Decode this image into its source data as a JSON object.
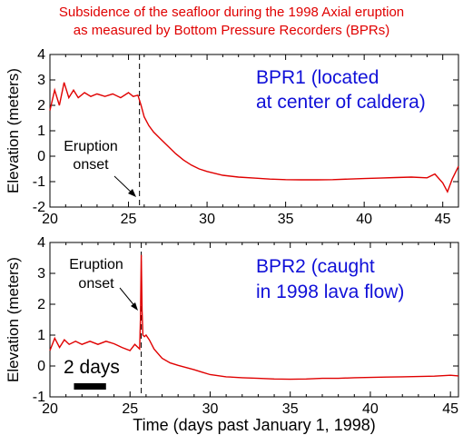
{
  "title_line1": "Subsidence of the seafloor during the 1998 Axial eruption",
  "title_line2": "as measured by Bottom Pressure Recorders (BPRs)",
  "colors": {
    "title": "#e00000",
    "series": "#e00000",
    "annotation": "#1010d8"
  },
  "chart_data": [
    {
      "type": "line",
      "name": "BPR1",
      "annotation_line1": "BPR1 (located",
      "annotation_line2": "at center of caldera)",
      "marker_label_line1": "Eruption",
      "marker_label_line2": "onset",
      "marker_x": 25.7,
      "ylabel": "Elevation (meters)",
      "xlim": [
        20,
        46
      ],
      "ylim": [
        -2,
        4
      ],
      "xticks": [
        "20",
        "25",
        "30",
        "35",
        "40",
        "45"
      ],
      "yticks": [
        "-2",
        "-1",
        "0",
        "1",
        "2",
        "3",
        "4"
      ],
      "x": [
        20,
        20.3,
        20.6,
        20.9,
        21.2,
        21.5,
        21.8,
        22.2,
        22.6,
        23,
        23.5,
        24,
        24.5,
        25,
        25.3,
        25.6,
        25.8,
        26,
        26.3,
        26.6,
        27,
        27.5,
        28,
        28.5,
        29,
        29.5,
        30,
        31,
        32,
        33,
        34,
        35,
        36,
        37,
        38,
        39,
        40,
        41,
        42,
        43,
        44,
        44.5,
        45,
        45.3,
        45.6,
        46
      ],
      "y": [
        1.8,
        2.6,
        2.0,
        2.9,
        2.3,
        2.6,
        2.3,
        2.5,
        2.35,
        2.45,
        2.35,
        2.45,
        2.3,
        2.5,
        2.35,
        2.4,
        2.0,
        1.55,
        1.2,
        0.95,
        0.7,
        0.4,
        0.1,
        -0.15,
        -0.35,
        -0.5,
        -0.6,
        -0.75,
        -0.82,
        -0.86,
        -0.9,
        -0.92,
        -0.93,
        -0.93,
        -0.92,
        -0.9,
        -0.88,
        -0.86,
        -0.84,
        -0.82,
        -0.85,
        -0.7,
        -1.05,
        -1.4,
        -0.9,
        -0.4
      ]
    },
    {
      "type": "line",
      "name": "BPR2",
      "annotation_line1": "BPR2 (caught",
      "annotation_line2": "in 1998 lava flow)",
      "marker_label_line1": "Eruption",
      "marker_label_line2": "onset",
      "marker_x": 25.7,
      "scale_label": "2 days",
      "scale_bar_start": 21.5,
      "scale_bar_end": 23.5,
      "ylabel": "Elevation (meters)",
      "xlabel": "Time (days past January 1, 1998)",
      "xlim": [
        20,
        45.5
      ],
      "ylim": [
        -1,
        4
      ],
      "xticks": [
        "20",
        "25",
        "30",
        "35",
        "40",
        "45"
      ],
      "yticks": [
        "-1",
        "0",
        "1",
        "2",
        "3",
        "4"
      ],
      "x": [
        20,
        20.3,
        20.6,
        20.9,
        21.2,
        21.6,
        22,
        22.5,
        23,
        23.5,
        24,
        24.5,
        25,
        25.3,
        25.6,
        25.65,
        25.7,
        25.75,
        25.8,
        25.9,
        26,
        26.2,
        26.5,
        27,
        27.5,
        28,
        28.5,
        29,
        29.5,
        30,
        31,
        32,
        33,
        34,
        35,
        36,
        37,
        38,
        39,
        40,
        41,
        42,
        43,
        44,
        45,
        45.5
      ],
      "y": [
        0.5,
        0.9,
        0.6,
        0.85,
        0.7,
        0.8,
        0.7,
        0.8,
        0.7,
        0.8,
        0.72,
        0.6,
        0.5,
        0.7,
        0.55,
        1.5,
        3.6,
        1.8,
        1.0,
        0.95,
        1.0,
        0.85,
        0.55,
        0.25,
        0.1,
        0.02,
        -0.05,
        -0.12,
        -0.2,
        -0.28,
        -0.35,
        -0.38,
        -0.4,
        -0.42,
        -0.43,
        -0.42,
        -0.4,
        -0.4,
        -0.38,
        -0.37,
        -0.36,
        -0.35,
        -0.34,
        -0.33,
        -0.3,
        -0.32
      ]
    }
  ]
}
